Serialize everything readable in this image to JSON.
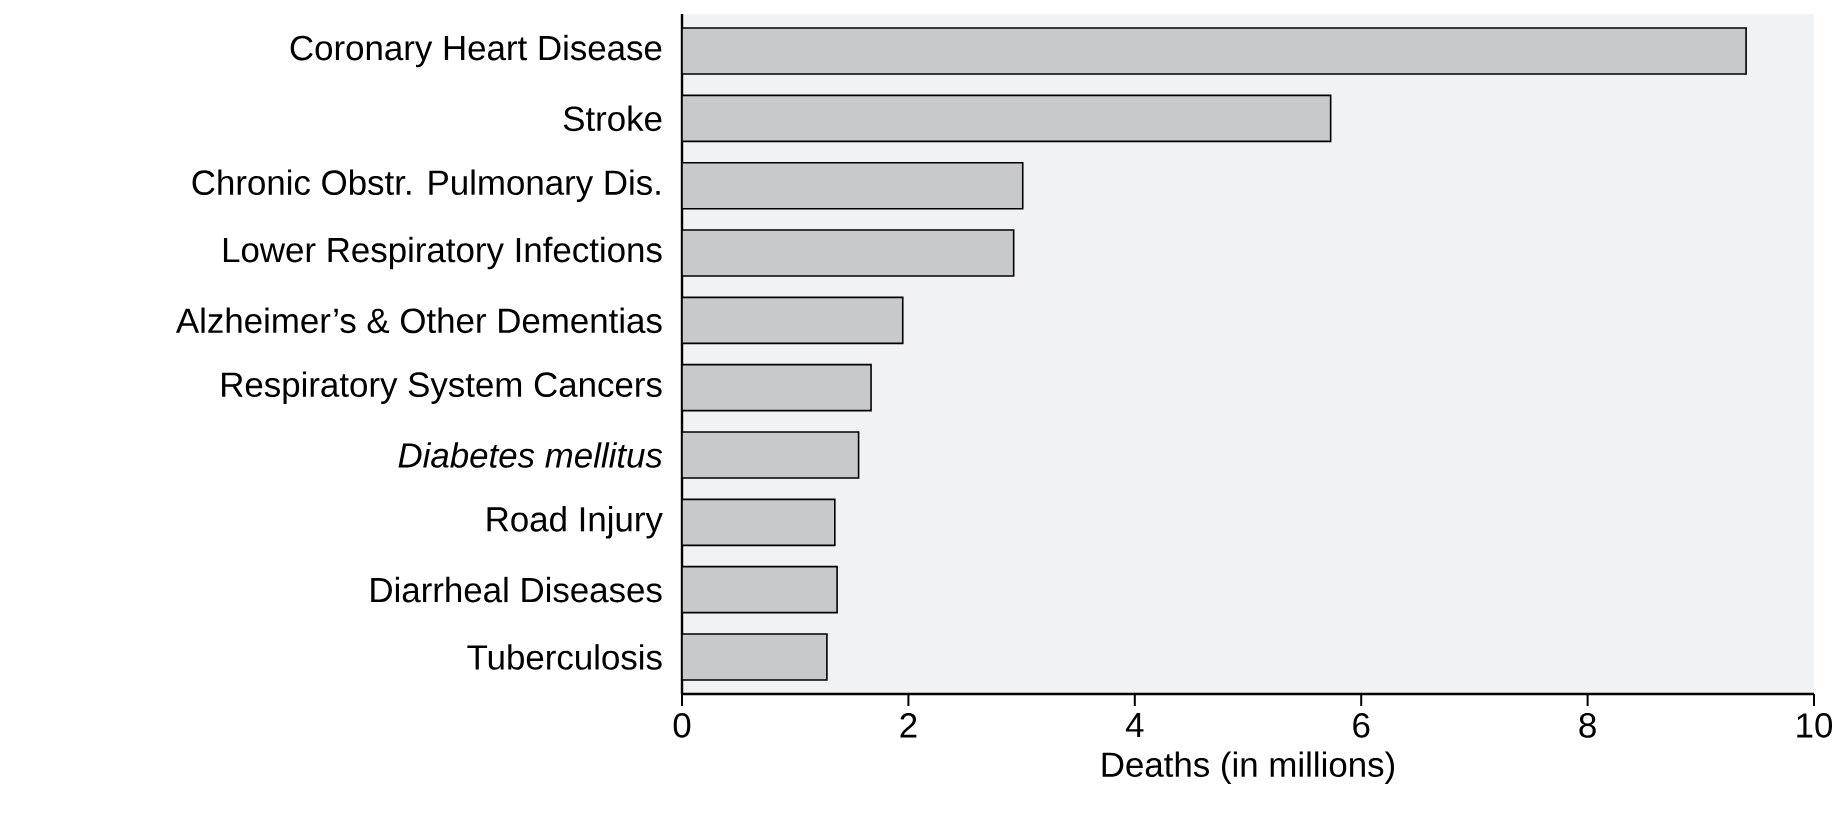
{
  "chart_data": {
    "type": "bar",
    "orientation": "horizontal",
    "categories": [
      "Coronary Heart Disease",
      "Stroke",
      "Chronic Obstr. Pulmonary Dis.",
      "Lower Respiratory Infections",
      "Alzheimer’s & Other Dementias",
      "Respiratory System Cancers",
      "*Diabetes mellitus*",
      "Road Injury",
      "Diarrheal Diseases",
      "Tuberculosis"
    ],
    "values": [
      9.4,
      5.73,
      3.01,
      2.93,
      1.95,
      1.67,
      1.56,
      1.35,
      1.37,
      1.28
    ],
    "color": "#c8c9cb",
    "xlabel": "Deaths (in millions)",
    "xlim": [
      0,
      10
    ],
    "xticks": [
      0,
      2,
      4,
      6,
      8,
      10
    ],
    "grid": false
  }
}
